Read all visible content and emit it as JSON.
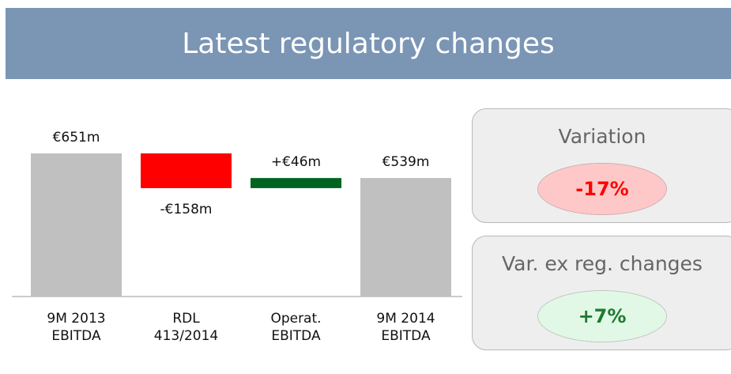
{
  "chart_data": {
    "type": "waterfall",
    "title": "Latest regulatory changes",
    "categories": [
      "9M 2013 EBITDA",
      "RDL 413/2014",
      "Operat. EBITDA",
      "9M 2014 EBITDA"
    ],
    "values": [
      651,
      -158,
      46,
      539
    ],
    "value_labels": [
      "€651m",
      "-€158m",
      "+€46m",
      "€539m"
    ],
    "bar_kinds": [
      "total",
      "delta",
      "delta",
      "total"
    ],
    "colors": [
      "#c0c0c0",
      "#ff0000",
      "#006420",
      "#c0c0c0"
    ]
  },
  "panels": [
    {
      "title": "Variation",
      "value": "-17%",
      "color": "#ff0000",
      "fill": "#ffc8c8"
    },
    {
      "title": "Var. ex reg. changes",
      "value": "+7%",
      "color": "#1e7a30",
      "fill": "#e2f8e6"
    }
  ]
}
